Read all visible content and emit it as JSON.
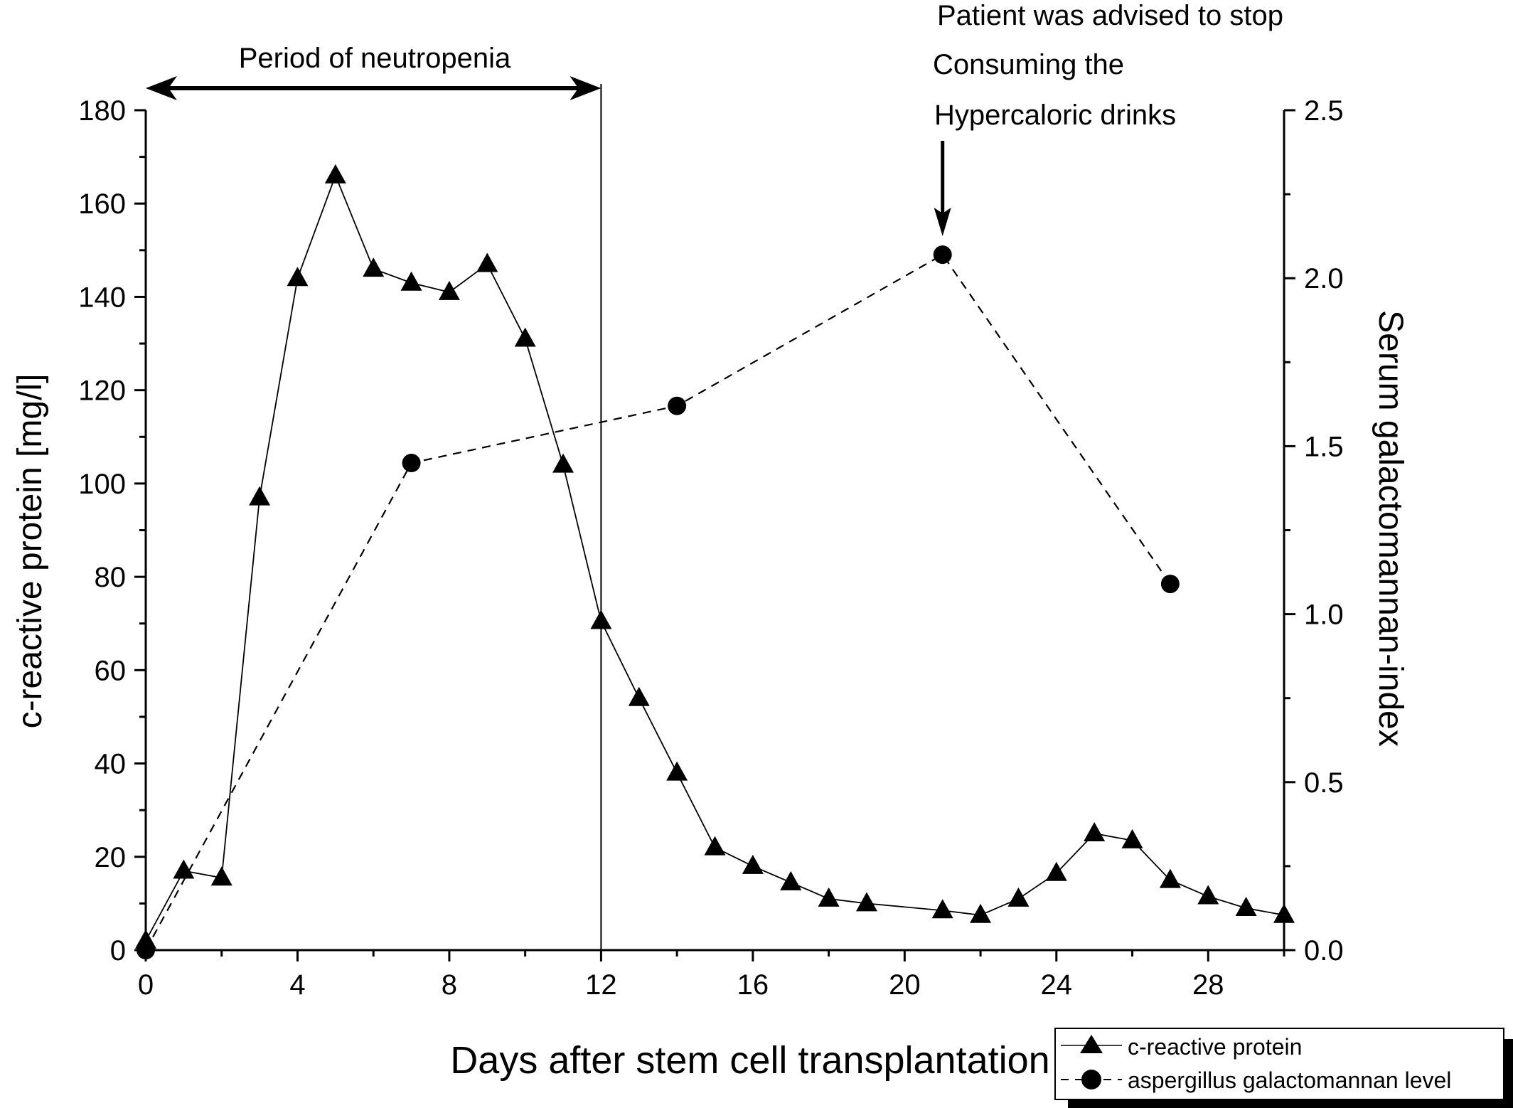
{
  "chart_data": {
    "type": "line",
    "xlabel": "Days after stem cell transplantation",
    "ylabel_left": "c-reactive protein [mg/l]",
    "ylabel_right": "Serum galactomannan-index",
    "xlim": [
      0,
      30
    ],
    "ylim_left": [
      0,
      180
    ],
    "ylim_right": [
      0,
      2.5
    ],
    "x_ticks": [
      0,
      4,
      8,
      12,
      16,
      20,
      24,
      28
    ],
    "y_left_ticks": [
      0,
      20,
      40,
      60,
      80,
      100,
      120,
      140,
      160,
      180
    ],
    "y_right_ticks": [
      "0.0",
      "0.5",
      "1.0",
      "1.5",
      "2.0",
      "2.5"
    ],
    "grid": false,
    "legend_position": "bottom-right",
    "series": [
      {
        "name": "c-reactive protein",
        "axis": "left",
        "marker": "triangle",
        "line_style": "solid",
        "x": [
          0,
          1,
          2,
          3,
          4,
          5,
          6,
          7,
          8,
          9,
          10,
          11,
          12,
          13,
          14,
          15,
          16,
          17,
          18,
          19,
          21,
          22,
          23,
          24,
          25,
          26,
          27,
          28,
          29,
          30
        ],
        "y": [
          2,
          17,
          15.5,
          97,
          144,
          166,
          146,
          143,
          141,
          147,
          131,
          104,
          70.5,
          54,
          38,
          22,
          18,
          14.5,
          11,
          10,
          8.5,
          7.5,
          11,
          16.5,
          25,
          23.5,
          15,
          11.5,
          9,
          7.5
        ]
      },
      {
        "name": "aspergillus galactomannan level",
        "axis": "right",
        "marker": "circle",
        "line_style": "dashed",
        "x": [
          0,
          7,
          14,
          21,
          27
        ],
        "y": [
          0.0,
          1.45,
          1.62,
          2.07,
          1.09
        ]
      }
    ],
    "annotations": {
      "neutropenia_label": "Period of neutropenia",
      "neutropenia_range": [
        0,
        12
      ],
      "advice_lines": [
        "Patient was advised to stop",
        "Consuming the",
        "Hypercaloric drinks"
      ],
      "advice_x": 21
    }
  }
}
